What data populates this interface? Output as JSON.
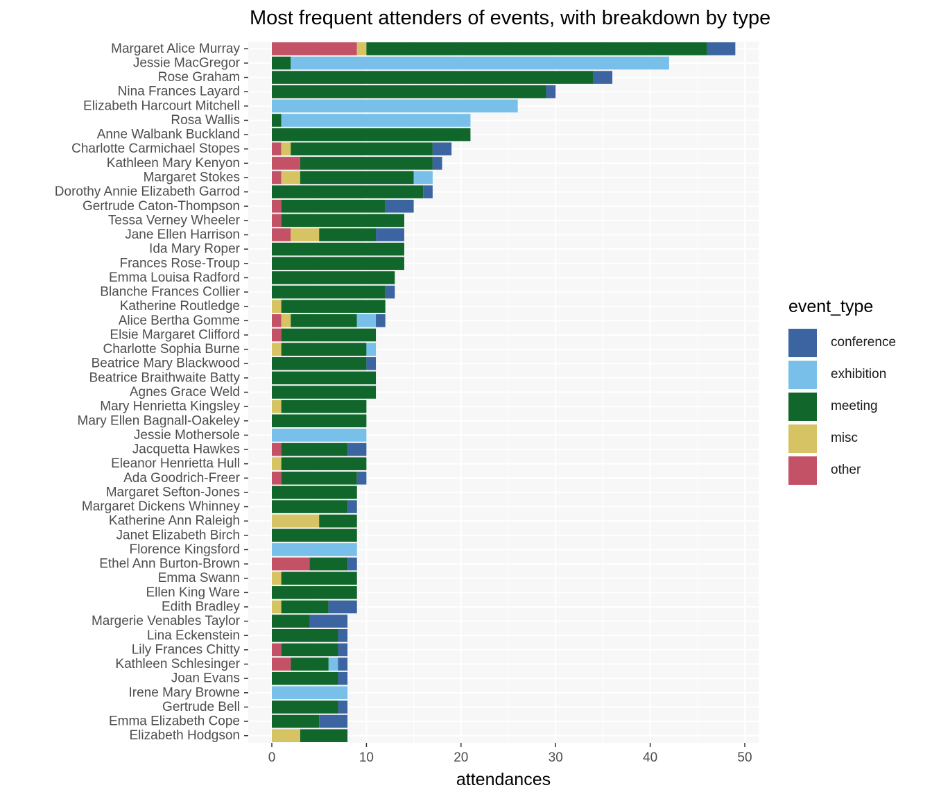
{
  "chart_data": {
    "type": "bar",
    "orientation": "horizontal",
    "stacked": true,
    "title": "Most frequent attenders of events, with breakdown by type",
    "xlabel": "attendances",
    "ylabel": "",
    "xlim": [
      0,
      50
    ],
    "x_ticks": [
      "0",
      "10",
      "20",
      "30",
      "40",
      "50"
    ],
    "grid": true,
    "legend_title": "event_type",
    "legend_position": "right",
    "stack_order": [
      "other",
      "misc",
      "meeting",
      "exhibition",
      "conference"
    ],
    "legend_order": [
      "conference",
      "exhibition",
      "meeting",
      "misc",
      "other"
    ],
    "colors": {
      "conference": "#3b64a0",
      "exhibition": "#78bfe9",
      "meeting": "#11662b",
      "misc": "#d6c363",
      "other": "#c45267"
    },
    "categories": [
      "Margaret Alice Murray",
      "Jessie MacGregor",
      "Rose Graham",
      "Nina Frances Layard",
      "Elizabeth Harcourt Mitchell",
      "Rosa Wallis",
      "Anne Walbank Buckland",
      "Charlotte Carmichael Stopes",
      "Kathleen Mary Kenyon",
      "Margaret Stokes",
      "Dorothy Annie Elizabeth Garrod",
      "Gertrude Caton-Thompson",
      "Tessa Verney Wheeler",
      "Jane Ellen Harrison",
      "Ida Mary Roper",
      "Frances Rose-Troup",
      "Emma Louisa Radford",
      "Blanche Frances Collier",
      "Katherine Routledge",
      "Alice Bertha Gomme",
      "Elsie Margaret Clifford",
      "Charlotte Sophia Burne",
      "Beatrice Mary Blackwood",
      "Beatrice Braithwaite Batty",
      "Agnes Grace Weld",
      "Mary Henrietta Kingsley",
      "Mary Ellen Bagnall-Oakeley",
      "Jessie Mothersole",
      "Jacquetta Hawkes",
      "Eleanor Henrietta Hull",
      "Ada Goodrich-Freer",
      "Margaret Sefton-Jones",
      "Margaret Dickens Whinney",
      "Katherine Ann Raleigh",
      "Janet Elizabeth Birch",
      "Florence Kingsford",
      "Ethel Ann Burton-Brown",
      "Emma Swann",
      "Ellen King Ware",
      "Edith Bradley",
      "Margerie Venables Taylor",
      "Lina Eckenstein",
      "Lily Frances Chitty",
      "Kathleen Schlesinger",
      "Joan Evans",
      "Irene Mary Browne",
      "Gertrude Bell",
      "Emma Elizabeth Cope",
      "Elizabeth Hodgson"
    ],
    "series": [
      {
        "name": "other",
        "values": [
          9,
          0,
          0,
          0,
          0,
          0,
          0,
          1,
          3,
          1,
          0,
          1,
          1,
          2,
          0,
          0,
          0,
          0,
          0,
          1,
          1,
          0,
          0,
          0,
          0,
          0,
          0,
          0,
          1,
          0,
          1,
          0,
          0,
          0,
          0,
          0,
          4,
          0,
          0,
          0,
          0,
          0,
          1,
          2,
          0,
          0,
          0,
          0,
          0
        ]
      },
      {
        "name": "misc",
        "values": [
          1,
          0,
          0,
          0,
          0,
          0,
          0,
          1,
          0,
          2,
          0,
          0,
          0,
          3,
          0,
          0,
          0,
          0,
          1,
          1,
          0,
          1,
          0,
          0,
          0,
          1,
          0,
          0,
          0,
          1,
          0,
          0,
          0,
          5,
          0,
          0,
          0,
          1,
          0,
          1,
          0,
          0,
          0,
          0,
          0,
          0,
          0,
          0,
          3
        ]
      },
      {
        "name": "meeting",
        "values": [
          36,
          2,
          34,
          29,
          0,
          1,
          21,
          15,
          14,
          12,
          16,
          11,
          13,
          6,
          14,
          14,
          13,
          12,
          11,
          7,
          10,
          9,
          10,
          11,
          11,
          9,
          10,
          0,
          7,
          9,
          8,
          9,
          8,
          4,
          9,
          0,
          4,
          8,
          9,
          5,
          4,
          7,
          6,
          4,
          7,
          0,
          7,
          5,
          5
        ]
      },
      {
        "name": "exhibition",
        "values": [
          0,
          40,
          0,
          0,
          26,
          20,
          0,
          0,
          0,
          2,
          0,
          0,
          0,
          0,
          0,
          0,
          0,
          0,
          0,
          2,
          0,
          1,
          0,
          0,
          0,
          0,
          0,
          10,
          0,
          0,
          0,
          0,
          0,
          0,
          0,
          9,
          0,
          0,
          0,
          0,
          0,
          0,
          0,
          1,
          0,
          8,
          0,
          0,
          0
        ]
      },
      {
        "name": "conference",
        "values": [
          3,
          0,
          2,
          1,
          0,
          0,
          0,
          2,
          1,
          0,
          1,
          3,
          0,
          3,
          0,
          0,
          0,
          1,
          0,
          1,
          0,
          0,
          1,
          0,
          0,
          0,
          0,
          0,
          2,
          0,
          1,
          0,
          1,
          0,
          0,
          0,
          1,
          0,
          0,
          3,
          4,
          1,
          1,
          1,
          1,
          0,
          1,
          3,
          0
        ]
      }
    ]
  }
}
